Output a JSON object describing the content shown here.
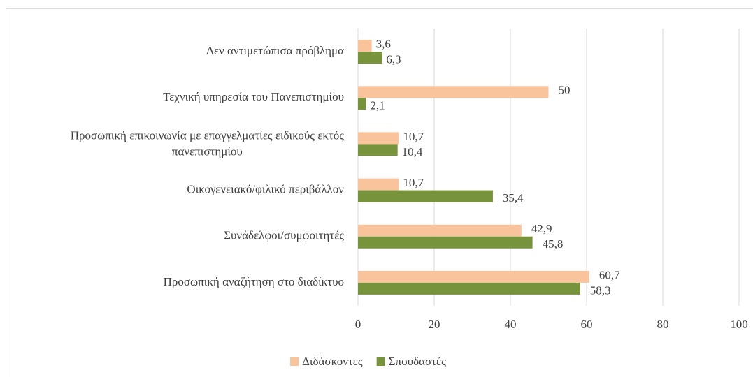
{
  "chart_data": {
    "type": "hbar",
    "categories": [
      "Δεν αντιμετώπισα πρόβλημα",
      "Τεχνική υπηρεσία του Πανεπιστημίου",
      "Προσωπική επικοινωνία με επαγγελματίες ειδικούς εκτός πανεπιστημίου",
      "Οικογενειακό/φιλικό περιβάλλον",
      "Συνάδελφοι/συμφοιτητές",
      "Προσωπική αναζήτηση στο διαδίκτυο"
    ],
    "series": [
      {
        "name": "Διδάσκοντες",
        "color": "#f9c39b",
        "values": [
          3.6,
          50,
          10.7,
          10.7,
          42.9,
          60.7
        ],
        "value_labels": [
          "3,6",
          "50",
          "10,7",
          "10,7",
          "42,9",
          "60,7"
        ]
      },
      {
        "name": "Σπουδαστές",
        "color": "#77933c",
        "values": [
          6.3,
          2.1,
          10.4,
          35.4,
          45.8,
          58.3
        ],
        "value_labels": [
          "6,3",
          "2,1",
          "10,4",
          "35,4",
          "45,8",
          "58,3"
        ]
      }
    ],
    "xlim": [
      0,
      100
    ],
    "xticks": [
      0,
      20,
      40,
      60,
      80,
      100
    ],
    "grid": true,
    "legend": "bottom"
  }
}
